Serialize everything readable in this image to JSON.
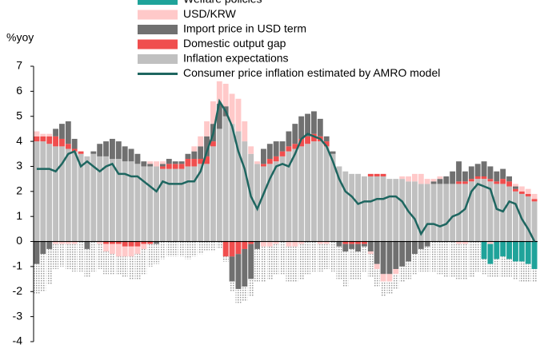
{
  "chart_data": {
    "type": "bar",
    "y_label": "%yoy",
    "ylim": [
      -4,
      7
    ],
    "yticks": [
      -4,
      -3,
      -2,
      -1,
      0,
      1,
      2,
      3,
      4,
      5,
      6,
      7
    ],
    "series": [
      {
        "name": "Welfare policies",
        "color": "#1fa39a",
        "values": [
          0,
          0,
          0,
          0,
          0,
          0,
          0,
          0,
          0,
          0,
          0,
          0,
          0,
          0,
          0,
          0,
          0,
          0,
          0,
          0,
          0,
          0,
          0,
          0,
          0,
          0,
          0,
          0,
          0,
          0,
          0,
          0,
          0,
          0,
          0,
          0,
          0,
          0,
          0,
          0,
          0,
          0,
          0,
          0,
          0,
          0,
          0,
          0,
          0,
          0,
          0,
          0,
          0,
          0,
          0,
          0,
          0,
          0,
          0,
          0,
          0,
          0,
          0,
          0,
          0,
          0,
          0,
          0,
          0,
          0,
          0,
          -0.7,
          -0.8,
          -0.7,
          -0.6,
          -0.7,
          -0.8,
          -0.8,
          -0.9,
          -1.1
        ]
      },
      {
        "name": "USD/KRW",
        "color": "#ffc9c9",
        "values": [
          0.2,
          0.1,
          0.1,
          -0.1,
          -0.1,
          -0.1,
          -0.1,
          0,
          0,
          0,
          -0.1,
          -0.3,
          -0.4,
          -0.5,
          -0.4,
          -0.4,
          -0.3,
          -0.2,
          0.1,
          0.2,
          0.1,
          0,
          0,
          0,
          0,
          0.2,
          0.4,
          0.6,
          0.9,
          0.9,
          0.9,
          1.2,
          1.3,
          0.8,
          0.3,
          0.1,
          -0.2,
          -0.2,
          -0.1,
          0,
          -0.2,
          -0.2,
          -0.1,
          0,
          0,
          -0.1,
          -0.1,
          0,
          0,
          0,
          0,
          0,
          0,
          -0.1,
          -0.2,
          -0.3,
          -0.3,
          -0.2,
          0.1,
          0.2,
          0.3,
          0.4,
          0.2,
          0.1,
          0.1,
          0,
          0,
          -0.1,
          -0.1,
          0,
          0,
          0,
          -0.1,
          0,
          0,
          0,
          0.1,
          0.2,
          0.2,
          0.2
        ]
      },
      {
        "name": "Import price in USD term",
        "color": "#707070",
        "values": [
          -0.9,
          -0.5,
          -0.3,
          0.3,
          0.6,
          0.9,
          0.4,
          0,
          -0.3,
          0.1,
          0.5,
          0.6,
          0.8,
          0.7,
          0.6,
          0.5,
          0.4,
          0.2,
          0.1,
          -0.1,
          0.1,
          0.2,
          0.1,
          0.1,
          0.2,
          0.3,
          0.5,
          0.8,
          0.7,
          1.0,
          0.4,
          -1.0,
          -1.4,
          -1.5,
          -1.4,
          -0.3,
          0.6,
          0.6,
          0.6,
          0.4,
          0.6,
          0.8,
          0.9,
          0.9,
          0.9,
          0.7,
          0.2,
          0.1,
          -0.2,
          -0.3,
          -0.2,
          -0.3,
          -0.1,
          -0.4,
          -0.9,
          -1.3,
          -1.3,
          -1.1,
          -1.0,
          -0.8,
          -0.5,
          -0.3,
          -0.2,
          0.1,
          0.2,
          0.3,
          0.5,
          0.8,
          0.4,
          0.5,
          0.5,
          0.6,
          0.5,
          0.4,
          0.4,
          0.2,
          0.1,
          0,
          0,
          0
        ]
      },
      {
        "name": "Domestic output gap",
        "color": "#f04e4e",
        "values": [
          0.2,
          0.2,
          0.3,
          0.4,
          0.3,
          0.2,
          0.1,
          0.1,
          0,
          0,
          0,
          -0.1,
          -0.1,
          -0.1,
          -0.2,
          -0.2,
          -0.2,
          -0.1,
          -0.1,
          0,
          0.1,
          0.2,
          0.2,
          0.2,
          0.3,
          0.3,
          0.2,
          0.3,
          0.2,
          0,
          -0.6,
          -0.6,
          -0.5,
          -0.3,
          -0.1,
          0,
          0.1,
          0.2,
          0.2,
          0.2,
          0.2,
          0.2,
          0.3,
          0.3,
          0.3,
          0.2,
          0.2,
          0,
          0,
          -0.1,
          -0.1,
          -0.1,
          -0.1,
          0.1,
          0.1,
          0.1,
          0,
          0,
          0,
          0,
          0,
          0,
          0,
          0,
          0,
          0,
          0,
          0.1,
          0.1,
          0.1,
          0.1,
          0.1,
          0.1,
          0.1,
          0.2,
          0.2,
          0.1,
          0.1,
          0.1,
          0.1
        ]
      },
      {
        "name": "Inflation expectations",
        "color": "#c0c0c0",
        "values": [
          4.0,
          4.0,
          3.9,
          3.8,
          3.8,
          3.7,
          3.6,
          3.5,
          3.4,
          3.5,
          3.4,
          3.4,
          3.3,
          3.3,
          3.2,
          3.2,
          3.1,
          3.0,
          3.0,
          3.0,
          2.9,
          2.9,
          2.9,
          2.9,
          3.0,
          3.0,
          3.1,
          3.1,
          3.8,
          4.5,
          5.0,
          4.7,
          4.4,
          4.0,
          3.5,
          3.1,
          3.0,
          3.1,
          3.2,
          3.4,
          3.6,
          3.7,
          3.8,
          3.9,
          4.0,
          4.0,
          3.8,
          3.5,
          3.0,
          2.8,
          2.7,
          2.7,
          2.6,
          2.6,
          2.6,
          2.6,
          2.5,
          2.5,
          2.5,
          2.4,
          2.4,
          2.3,
          2.3,
          2.3,
          2.3,
          2.3,
          2.3,
          2.3,
          2.3,
          2.4,
          2.5,
          2.5,
          2.4,
          2.3,
          2.3,
          2.2,
          2.0,
          1.9,
          1.8,
          1.6
        ]
      },
      {
        "color": "#aaaaaa",
        "pattern": "dots",
        "values": [
          -1.2,
          -1.5,
          -1.4,
          -1.0,
          -0.9,
          -1.0,
          -1.1,
          -1.2,
          -1.1,
          -1.2,
          -1.0,
          -0.9,
          -0.8,
          -0.7,
          -0.8,
          -0.9,
          -1.0,
          -1.0,
          -0.9,
          -0.8,
          -0.7,
          -0.6,
          -0.6,
          -0.6,
          -0.7,
          -0.6,
          -0.5,
          -0.4,
          -0.4,
          -0.3,
          -0.2,
          -0.4,
          -0.6,
          -0.6,
          -0.7,
          -1.3,
          -1.4,
          -1.3,
          -1.2,
          -1.3,
          -1.4,
          -1.4,
          -1.4,
          -1.3,
          -1.2,
          -1.1,
          -1.0,
          -1.2,
          -1.3,
          -1.4,
          -1.2,
          -1.1,
          -1.0,
          -0.9,
          -0.7,
          -0.6,
          -0.5,
          -0.6,
          -0.6,
          -0.7,
          -0.8,
          -0.9,
          -1.0,
          -1.2,
          -1.3,
          -1.4,
          -1.4,
          -1.4,
          -1.4,
          -1.4,
          -1.2,
          -0.6,
          -0.5,
          -0.7,
          -0.8,
          -0.7,
          -0.7,
          -0.8,
          -0.7,
          -0.5
        ]
      }
    ],
    "line": {
      "name": "Consumer price inflation estimated by AMRO model",
      "color": "#1e6660",
      "values": [
        2.9,
        2.9,
        2.9,
        2.8,
        3.1,
        3.5,
        3.6,
        3.0,
        3.2,
        3.0,
        2.8,
        3.0,
        3.1,
        2.7,
        2.7,
        2.6,
        2.6,
        2.4,
        2.2,
        2.0,
        2.4,
        2.3,
        2.3,
        2.3,
        2.4,
        2.4,
        2.8,
        3.6,
        4.3,
        5.6,
        5.2,
        4.6,
        3.6,
        2.9,
        1.8,
        1.3,
        1.9,
        2.5,
        3.0,
        3.1,
        3.0,
        3.5,
        4.1,
        4.3,
        4.2,
        4.1,
        3.8,
        3.2,
        2.5,
        2.0,
        1.8,
        1.5,
        1.6,
        1.6,
        1.7,
        1.7,
        1.8,
        1.8,
        1.6,
        1.2,
        0.9,
        0.3,
        0.7,
        0.7,
        0.6,
        0.7,
        1.0,
        1.1,
        1.3,
        2.0,
        2.3,
        2.2,
        2.1,
        1.3,
        1.2,
        1.6,
        1.5,
        0.9,
        0.5,
        0.0
      ]
    }
  }
}
